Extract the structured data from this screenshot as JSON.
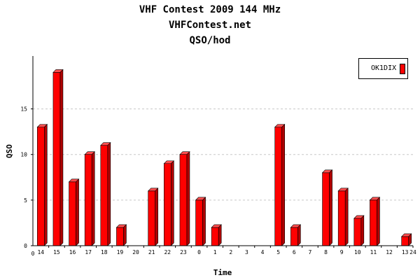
{
  "chart_data": {
    "type": "bar",
    "title_lines": [
      "VHF Contest 2009 144 MHz",
      "VHFContest.net",
      "QSO/hod"
    ],
    "xlabel": "Time",
    "ylabel": "QSO",
    "x_start_label": "0",
    "x_end_label": "24",
    "categories": [
      "14",
      "15",
      "16",
      "17",
      "18",
      "19",
      "20",
      "21",
      "22",
      "23",
      "0",
      "1",
      "2",
      "3",
      "4",
      "5",
      "6",
      "7",
      "8",
      "9",
      "10",
      "11",
      "12",
      "13"
    ],
    "series": [
      {
        "name": "OK1DIX",
        "color": "#ff0000",
        "values": [
          13,
          19,
          7,
          10,
          11,
          2,
          0,
          6,
          9,
          10,
          5,
          2,
          0,
          0,
          0,
          13,
          2,
          0,
          8,
          6,
          3,
          5,
          0,
          1
        ]
      }
    ],
    "yticks": [
      0,
      5,
      10,
      15
    ],
    "ylim": [
      0,
      20.8
    ],
    "grid": true,
    "legend_position": "top-right"
  }
}
